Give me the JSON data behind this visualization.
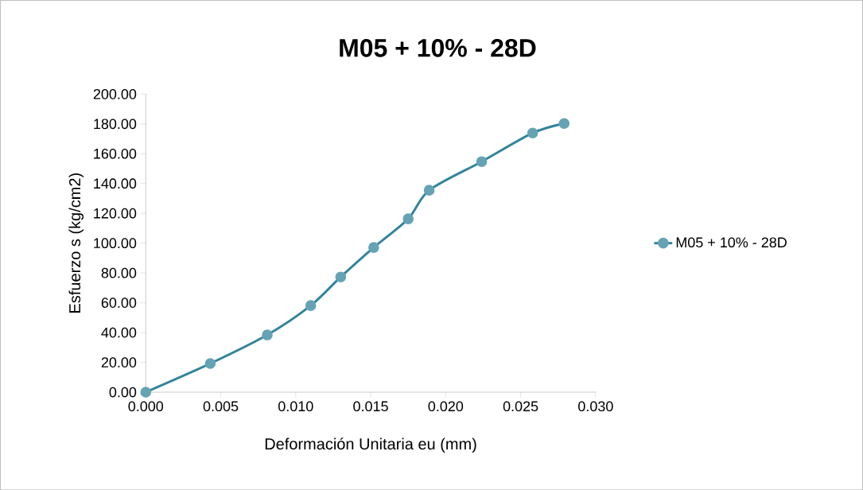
{
  "chart_data": {
    "type": "line",
    "title": "M05 + 10% - 28D",
    "xlabel": "Deformación Unitaria eu (mm)",
    "ylabel": "Esfuerzo s (kg/cm2)",
    "series": [
      {
        "name": "M05 + 10% - 28D",
        "color": "#31849b",
        "x": [
          0,
          0.0043,
          0.0081,
          0.011,
          0.013,
          0.0152,
          0.0175,
          0.0189,
          0.0224,
          0.0258,
          0.0279
        ],
        "values": [
          0,
          19.2,
          38.4,
          58.1,
          77.3,
          97.1,
          116.3,
          135.5,
          154.7,
          173.9,
          180.3
        ]
      }
    ],
    "xlim": [
      0,
      0.03
    ],
    "ylim": [
      0,
      200
    ],
    "xticks": [
      {
        "value": 0,
        "label": "0.000"
      },
      {
        "value": 0.005,
        "label": "0.005"
      },
      {
        "value": 0.01,
        "label": "0.010"
      },
      {
        "value": 0.015,
        "label": "0.015"
      },
      {
        "value": 0.02,
        "label": "0.020"
      },
      {
        "value": 0.025,
        "label": "0.025"
      },
      {
        "value": 0.03,
        "label": "0.030"
      }
    ],
    "yticks": [
      {
        "value": 0,
        "label": "0.00"
      },
      {
        "value": 20,
        "label": "20.00"
      },
      {
        "value": 40,
        "label": "40.00"
      },
      {
        "value": 60,
        "label": "60.00"
      },
      {
        "value": 80,
        "label": "80.00"
      },
      {
        "value": 100,
        "label": "100.00"
      },
      {
        "value": 120,
        "label": "120.00"
      },
      {
        "value": 140,
        "label": "140.00"
      },
      {
        "value": 160,
        "label": "160.00"
      },
      {
        "value": 180,
        "label": "180.00"
      },
      {
        "value": 200,
        "label": "200.00"
      }
    ],
    "legend": "right",
    "marker": "circle",
    "line_style": "solid",
    "grid": false
  }
}
